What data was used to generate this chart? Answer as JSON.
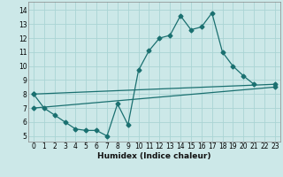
{
  "xlabel": "Humidex (Indice chaleur)",
  "x_ticks": [
    0,
    1,
    2,
    3,
    4,
    5,
    6,
    7,
    8,
    9,
    10,
    11,
    12,
    13,
    14,
    15,
    16,
    17,
    18,
    19,
    20,
    21,
    22,
    23
  ],
  "y_ticks": [
    5,
    6,
    7,
    8,
    9,
    10,
    11,
    12,
    13,
    14
  ],
  "xlim": [
    -0.5,
    23.5
  ],
  "ylim": [
    4.6,
    14.6
  ],
  "bg_color": "#cce8e8",
  "grid_color": "#aad4d4",
  "line_color": "#1a7070",
  "line1_x": [
    0,
    1,
    2,
    3,
    4,
    5,
    6,
    7,
    8,
    9,
    10,
    11,
    12,
    13,
    14,
    15,
    16,
    17,
    18,
    19,
    20,
    21
  ],
  "line1_y": [
    8.0,
    7.0,
    6.5,
    6.0,
    5.5,
    5.4,
    5.4,
    5.0,
    7.3,
    5.8,
    9.7,
    11.1,
    12.0,
    12.2,
    13.6,
    12.6,
    12.8,
    13.8,
    11.0,
    10.0,
    9.3,
    8.7
  ],
  "line2_x": [
    0,
    23
  ],
  "line2_y": [
    8.0,
    8.7
  ],
  "line3_x": [
    0,
    23
  ],
  "line3_y": [
    7.0,
    8.5
  ]
}
